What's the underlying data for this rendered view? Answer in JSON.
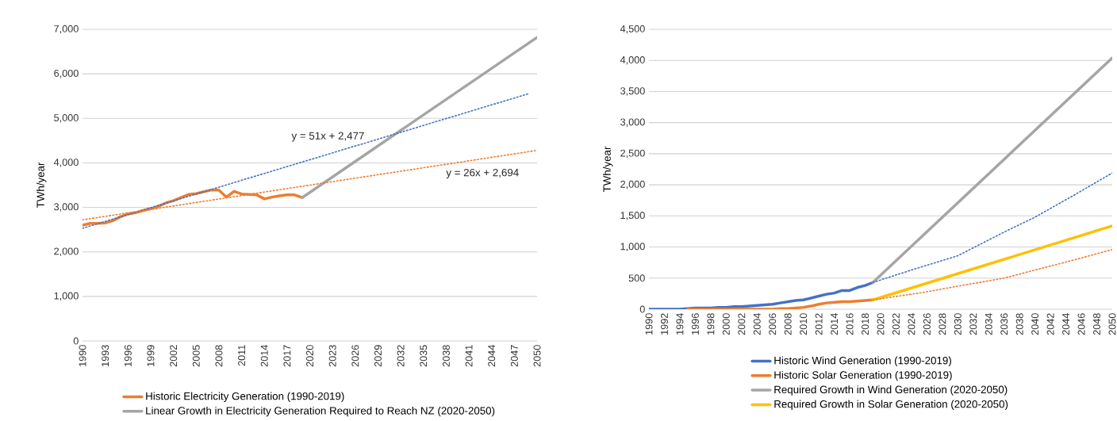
{
  "chart_data": [
    {
      "type": "line",
      "ylabel": "TWh/year",
      "xlim": [
        1990,
        2050
      ],
      "ylim": [
        0,
        7000
      ],
      "xticks": [
        1990,
        1993,
        1996,
        1999,
        2002,
        2005,
        2008,
        2011,
        2014,
        2017,
        2020,
        2023,
        2026,
        2029,
        2032,
        2035,
        2038,
        2041,
        2044,
        2047,
        2050
      ],
      "yticks": [
        0,
        {
          "value": 1000,
          "label": "1,000"
        },
        {
          "value": 2000,
          "label": "2,000"
        },
        {
          "value": 3000,
          "label": "3,000"
        },
        {
          "value": 4000,
          "label": "4,000"
        },
        {
          "value": 5000,
          "label": "5,000"
        },
        {
          "value": 6000,
          "label": "6,000"
        },
        {
          "value": 7000,
          "label": "7,000"
        }
      ],
      "grid": "y",
      "legend": "bottom",
      "marker": "none",
      "line_style": "solid",
      "series": [
        {
          "name": "Historic Electricity Generation (1990-2019)",
          "color": "#ed7d31",
          "x": [
            1990,
            1991,
            1992,
            1993,
            1994,
            1995,
            1996,
            1997,
            1998,
            1999,
            2000,
            2001,
            2002,
            2003,
            2004,
            2005,
            2006,
            2007,
            2008,
            2009,
            2010,
            2011,
            2012,
            2013,
            2014,
            2015,
            2016,
            2017,
            2018,
            2019
          ],
          "values": [
            2600,
            2640,
            2640,
            2650,
            2700,
            2790,
            2850,
            2880,
            2930,
            2970,
            3020,
            3100,
            3150,
            3220,
            3290,
            3310,
            3350,
            3390,
            3390,
            3230,
            3360,
            3300,
            3290,
            3280,
            3190,
            3230,
            3260,
            3280,
            3280,
            3220
          ]
        },
        {
          "name": "Linear Growth in Electricity Generation Required to Reach NZ (2020-2050)",
          "color": "#a5a5a5",
          "x": [
            2019,
            2050
          ],
          "values": [
            3220,
            6820
          ]
        },
        {
          "color": "#4472c4",
          "line_style": "dotted",
          "x": [
            1990,
            2049
          ],
          "values": [
            2530,
            5560
          ]
        },
        {
          "color": "#ed7d31",
          "line_style": "dotted",
          "x": [
            1990,
            2050
          ],
          "values": [
            2720,
            4280
          ]
        }
      ],
      "annotations": [
        "y = 51x + 2,477",
        "y = 26x + 2,694"
      ]
    },
    {
      "type": "line",
      "ylabel": "TWh/year",
      "xlim": [
        1990,
        2050
      ],
      "ylim": [
        0,
        4500
      ],
      "xticks": [
        1990,
        1992,
        1994,
        1996,
        1998,
        2000,
        2002,
        2004,
        2006,
        2008,
        2010,
        2012,
        2014,
        2016,
        2018,
        2020,
        2022,
        2024,
        2026,
        2028,
        2030,
        2032,
        2034,
        2036,
        2038,
        2040,
        2042,
        2044,
        2046,
        2048,
        2050
      ],
      "yticks": [
        0,
        500,
        {
          "value": 1000,
          "label": "1,000"
        },
        {
          "value": 1500,
          "label": "1,500"
        },
        {
          "value": 2000,
          "label": "2,000"
        },
        {
          "value": 2500,
          "label": "2,500"
        },
        {
          "value": 3000,
          "label": "3,000"
        },
        {
          "value": 3500,
          "label": "3,500"
        },
        {
          "value": 4000,
          "label": "4,000"
        },
        {
          "value": 4500,
          "label": "4,500"
        }
      ],
      "grid": "y",
      "legend": "bottom",
      "marker": "none",
      "line_style": "solid",
      "series": [
        {
          "name": "Historic Wind Generation (1990-2019)",
          "color": "#4472c4",
          "x": [
            1990,
            1991,
            1992,
            1993,
            1994,
            1995,
            1996,
            1997,
            1998,
            1999,
            2000,
            2001,
            2002,
            2003,
            2004,
            2005,
            2006,
            2007,
            2008,
            2009,
            2010,
            2011,
            2012,
            2013,
            2014,
            2015,
            2016,
            2017,
            2018,
            2019
          ],
          "values": [
            0,
            0,
            0,
            0,
            0,
            10,
            20,
            20,
            20,
            30,
            30,
            40,
            40,
            50,
            60,
            70,
            80,
            100,
            120,
            140,
            150,
            180,
            210,
            240,
            260,
            300,
            300,
            350,
            380,
            430
          ]
        },
        {
          "name": "Historic Solar Generation (1990-2019)",
          "color": "#ed7d31",
          "x": [
            1995,
            1996,
            1997,
            1998,
            1999,
            2000,
            2001,
            2002,
            2003,
            2004,
            2005,
            2006,
            2007,
            2008,
            2009,
            2010,
            2011,
            2012,
            2013,
            2014,
            2015,
            2016,
            2017,
            2018,
            2019
          ],
          "values": [
            0,
            0,
            0,
            0,
            0,
            0,
            0,
            0,
            0,
            0,
            0,
            0,
            10,
            10,
            20,
            30,
            50,
            80,
            100,
            110,
            120,
            120,
            130,
            140,
            150
          ]
        },
        {
          "name": "Required Growth in Wind Generation (2020-2050)",
          "color": "#a5a5a5",
          "x": [
            2019,
            2050
          ],
          "values": [
            430,
            4040
          ]
        },
        {
          "name": "Required Growth in Solar Generation (2020-2050)",
          "color": "#ffc000",
          "x": [
            2019,
            2050
          ],
          "values": [
            150,
            1340
          ]
        },
        {
          "color": "#4472c4",
          "line_style": "dotted",
          "x": [
            2019,
            2024,
            2030,
            2036,
            2040,
            2045,
            2050
          ],
          "values": [
            430,
            630,
            860,
            1240,
            1480,
            1830,
            2190
          ]
        },
        {
          "color": "#ed7d31",
          "line_style": "dotted",
          "x": [
            2019,
            2025,
            2030,
            2036,
            2040,
            2045,
            2050
          ],
          "values": [
            150,
            260,
            370,
            500,
            630,
            790,
            960
          ]
        }
      ]
    }
  ]
}
